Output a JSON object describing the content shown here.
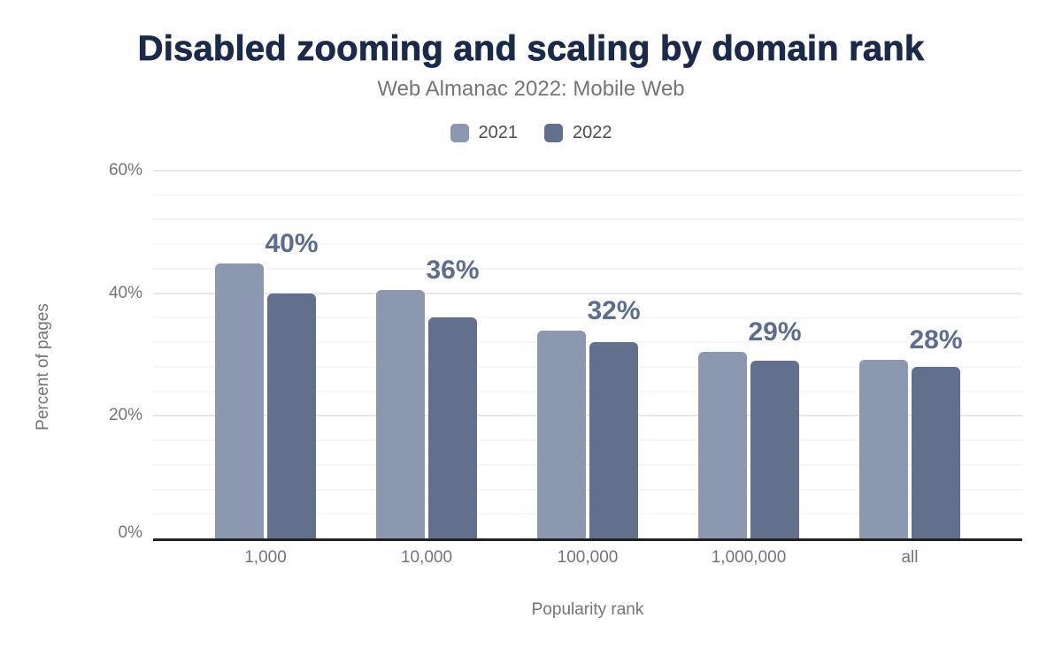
{
  "chart_data": {
    "type": "bar",
    "title": "Disabled zooming and scaling by domain rank",
    "subtitle": "Web Almanac 2022: Mobile Web",
    "xlabel": "Popularity rank",
    "ylabel": "Percent of pages",
    "categories": [
      "1,000",
      "10,000",
      "100,000",
      "1,000,000",
      "all"
    ],
    "series": [
      {
        "name": "2021",
        "color": "#8c98b0",
        "values": [
          44.9,
          40.5,
          33.9,
          30.4,
          29.2
        ]
      },
      {
        "name": "2022",
        "color": "#62708e",
        "values": [
          40,
          36,
          32,
          29,
          28
        ]
      }
    ],
    "data_labels": {
      "series": "2022",
      "values": [
        "40%",
        "36%",
        "32%",
        "29%",
        "28%"
      ]
    },
    "ylim": [
      0,
      60
    ],
    "yticks": [
      "0%",
      "20%",
      "40%",
      "60%"
    ],
    "grid": "horizontal major every 20%, minor every 4%",
    "legend_position": "top"
  },
  "colors": {
    "title": "#1b2a4a",
    "subtitle": "#757575",
    "axis_text": "#757575",
    "legend_text": "#4d4d4d",
    "series_2021": "#8c98b0",
    "series_2022": "#62708e",
    "data_label": "#5b6e92",
    "axis_line": "#212121",
    "grid_major": "#e8e8e8",
    "grid_minor": "#f6f6f6"
  }
}
